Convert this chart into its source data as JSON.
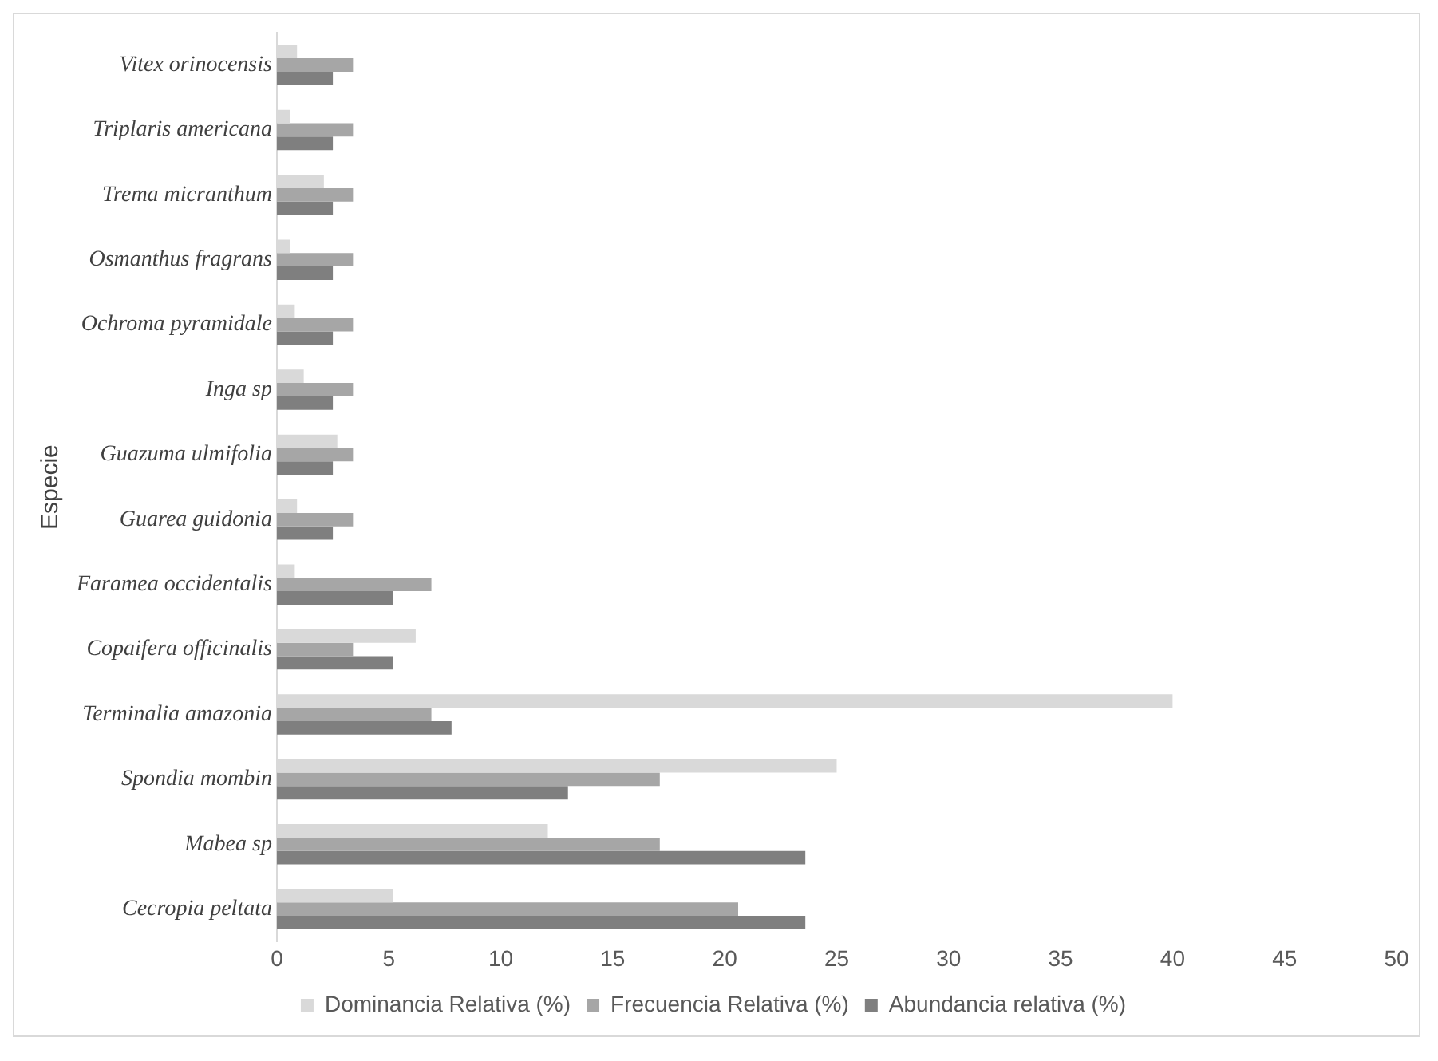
{
  "chart_data": {
    "type": "bar",
    "orientation": "horizontal",
    "ylabel": "Especie",
    "categories": [
      "Vitex orinocensis",
      "Triplaris americana",
      "Trema micranthum",
      "Osmanthus fragrans",
      "Ochroma pyramidale",
      "Inga sp",
      "Guazuma ulmifolia",
      "Guarea guidonia",
      "Faramea occidentalis",
      "Copaifera officinalis",
      "Terminalia amazonia",
      "Spondia mombin",
      "Mabea sp",
      "Cecropia peltata"
    ],
    "series": [
      {
        "name": "Dominancia Relativa (%)",
        "color": "#d9d9d9",
        "values": [
          0.9,
          0.6,
          2.1,
          0.6,
          0.8,
          1.2,
          2.7,
          0.9,
          0.8,
          6.2,
          40,
          25,
          12.1,
          5.2
        ]
      },
      {
        "name": "Frecuencia Relativa (%)",
        "color": "#a6a6a6",
        "values": [
          3.4,
          3.4,
          3.4,
          3.4,
          3.4,
          3.4,
          3.4,
          3.4,
          6.9,
          3.4,
          6.9,
          17.1,
          17.1,
          20.6
        ]
      },
      {
        "name": "Abundancia relativa (%)",
        "color": "#7f7f7f",
        "values": [
          2.5,
          2.5,
          2.5,
          2.5,
          2.5,
          2.5,
          2.5,
          2.5,
          5.2,
          5.2,
          7.8,
          13,
          23.6,
          23.6
        ]
      }
    ],
    "xlim": [
      0,
      50
    ],
    "xticks": [
      0,
      5,
      10,
      15,
      20,
      25,
      30,
      35,
      40,
      45,
      50
    ],
    "grid": false,
    "legend": "bottom"
  }
}
